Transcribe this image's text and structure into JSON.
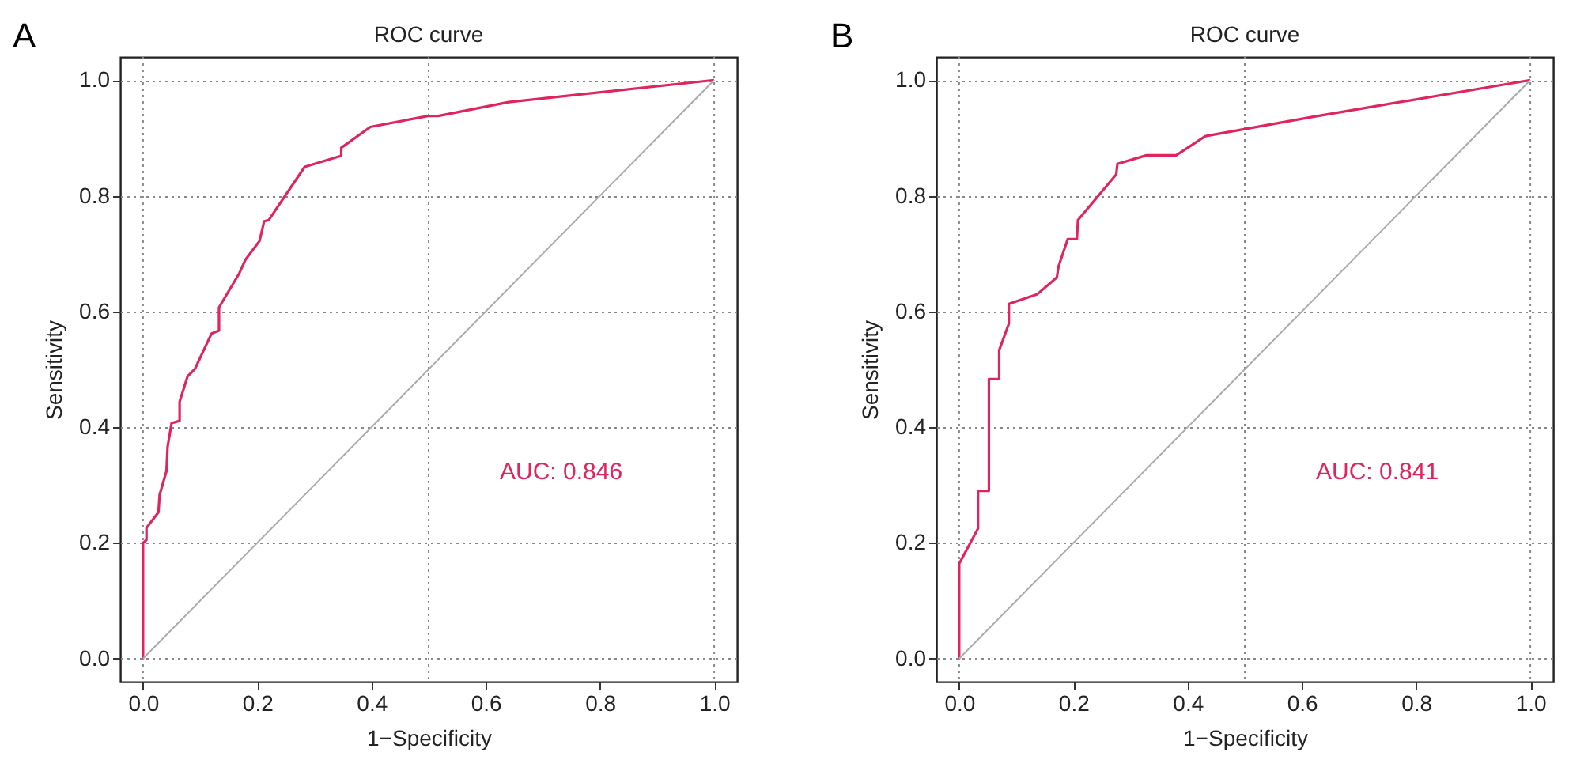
{
  "chart_data": [
    {
      "type": "line",
      "title": "ROC curve",
      "xlabel": "1−Specificity",
      "ylabel": "Sensitivity",
      "annotations": [
        "A",
        "AUC: 0.846"
      ],
      "xlim": [
        -0.04,
        1.04
      ],
      "ylim": [
        -0.04,
        1.04
      ],
      "xticks": [
        {
          "value": 0,
          "label": "0.0"
        },
        {
          "value": 0.2,
          "label": "0.2"
        },
        {
          "value": 0.4,
          "label": "0.4"
        },
        {
          "value": 0.6,
          "label": "0.6"
        },
        {
          "value": 0.8,
          "label": "0.8"
        },
        {
          "value": 1,
          "label": "1.0"
        }
      ],
      "yticks": [
        {
          "value": 0,
          "label": "0.0"
        },
        {
          "value": 0.2,
          "label": "0.2"
        },
        {
          "value": 0.4,
          "label": "0.4"
        },
        {
          "value": 0.6,
          "label": "0.6"
        },
        {
          "value": 0.8,
          "label": "0.8"
        },
        {
          "value": 1,
          "label": "1.0"
        }
      ],
      "grid": "y",
      "ref_lines": [
        {
          "axis": "x",
          "value": 0,
          "color": "#888888",
          "line_style": "dotted"
        },
        {
          "axis": "x",
          "value": 0.5,
          "color": "#888888",
          "line_style": "dotted"
        },
        {
          "axis": "x",
          "value": 1,
          "color": "#888888",
          "line_style": "dotted"
        }
      ],
      "series": [
        {
          "color": "#e0245e",
          "x": [
            0,
            0,
            0.006,
            0.006,
            0.027,
            0.029,
            0.041,
            0.043,
            0.05,
            0.064,
            0.064,
            0.078,
            0.091,
            0.12,
            0.133,
            0.133,
            0.168,
            0.179,
            0.204,
            0.212,
            0.22,
            0.283,
            0.347,
            0.347,
            0.398,
            0.499,
            0.517,
            0.64,
            1
          ],
          "values": [
            0,
            0.2,
            0.205,
            0.226,
            0.253,
            0.283,
            0.324,
            0.366,
            0.407,
            0.411,
            0.444,
            0.488,
            0.501,
            0.562,
            0.567,
            0.607,
            0.665,
            0.689,
            0.722,
            0.756,
            0.758,
            0.85,
            0.869,
            0.883,
            0.919,
            0.938,
            0.938,
            0.962,
            1
          ]
        },
        {
          "color": "#aaaaaa",
          "x": [
            0,
            1
          ],
          "values": [
            0,
            1
          ]
        }
      ]
    },
    {
      "type": "line",
      "title": "ROC curve",
      "xlabel": "1−Specificity",
      "ylabel": "Sensitivity",
      "annotations": [
        "B",
        "AUC: 0.841"
      ],
      "xlim": [
        -0.04,
        1.04
      ],
      "ylim": [
        -0.04,
        1.04
      ],
      "xticks": [
        {
          "value": 0,
          "label": "0.0"
        },
        {
          "value": 0.2,
          "label": "0.2"
        },
        {
          "value": 0.4,
          "label": "0.4"
        },
        {
          "value": 0.6,
          "label": "0.6"
        },
        {
          "value": 0.8,
          "label": "0.8"
        },
        {
          "value": 1,
          "label": "1.0"
        }
      ],
      "yticks": [
        {
          "value": 0,
          "label": "0.0"
        },
        {
          "value": 0.2,
          "label": "0.2"
        },
        {
          "value": 0.4,
          "label": "0.4"
        },
        {
          "value": 0.6,
          "label": "0.6"
        },
        {
          "value": 0.8,
          "label": "0.8"
        },
        {
          "value": 1,
          "label": "1.0"
        }
      ],
      "grid": "y",
      "ref_lines": [
        {
          "axis": "x",
          "value": 0,
          "color": "#888888",
          "line_style": "dotted"
        },
        {
          "axis": "x",
          "value": 0.5,
          "color": "#888888",
          "line_style": "dotted"
        },
        {
          "axis": "x",
          "value": 1,
          "color": "#888888",
          "line_style": "dotted"
        }
      ],
      "series": [
        {
          "color": "#e0245e",
          "x": [
            0,
            0,
            0.033,
            0.033,
            0.052,
            0.052,
            0.07,
            0.07,
            0.087,
            0.087,
            0.137,
            0.171,
            0.174,
            0.19,
            0.206,
            0.208,
            0.275,
            0.277,
            0.328,
            0.38,
            0.431,
            0.622,
            1
          ],
          "values": [
            0,
            0.164,
            0.225,
            0.29,
            0.29,
            0.483,
            0.483,
            0.533,
            0.579,
            0.613,
            0.63,
            0.659,
            0.678,
            0.725,
            0.725,
            0.758,
            0.837,
            0.855,
            0.87,
            0.87,
            0.903,
            0.937,
            1
          ]
        },
        {
          "color": "#aaaaaa",
          "x": [
            0,
            1
          ],
          "values": [
            0,
            1
          ]
        }
      ]
    }
  ]
}
